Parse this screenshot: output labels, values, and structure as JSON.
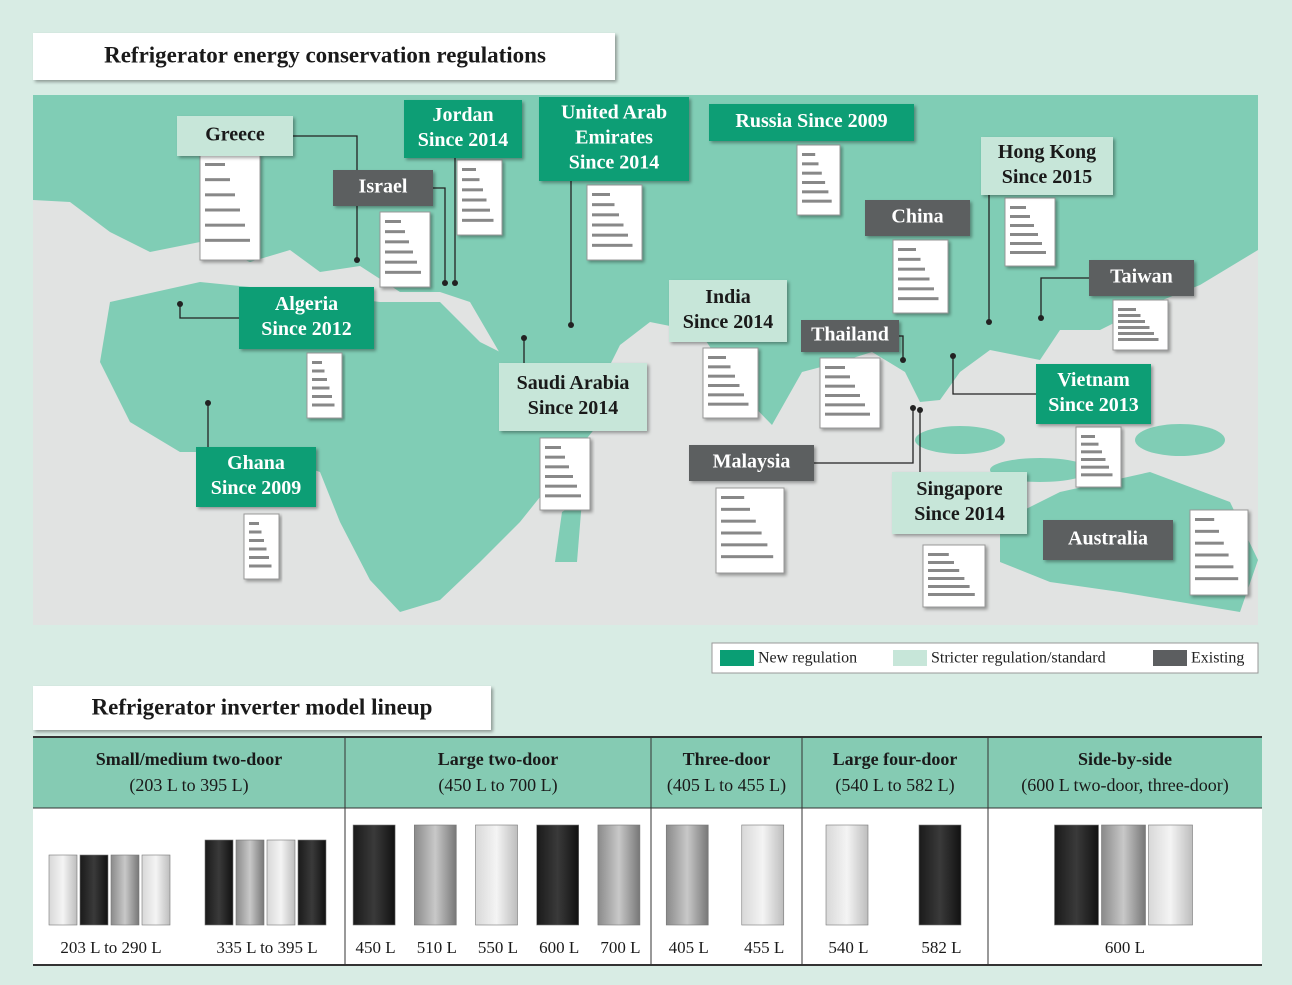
{
  "map": {
    "title": "Refrigerator energy conservation regulations",
    "regions": [
      {
        "lines": [
          "Greece"
        ],
        "color": "#c7e6d9"
      },
      {
        "lines": [
          "Jordan",
          "Since 2014"
        ],
        "color": "#0a9e74"
      },
      {
        "lines": [
          "United Arab",
          "Emirates",
          "Since 2014"
        ],
        "color": "#0a9e74"
      },
      {
        "lines": [
          "Russia  Since 2009"
        ],
        "color": "#0a9e74"
      },
      {
        "lines": [
          "Israel"
        ],
        "color": "#5c5e60"
      },
      {
        "lines": [
          "Hong Kong",
          "Since 2015"
        ],
        "color": "#c7e6d9"
      },
      {
        "lines": [
          "China"
        ],
        "color": "#5c5e60"
      },
      {
        "lines": [
          "Taiwan"
        ],
        "color": "#5c5e60"
      },
      {
        "lines": [
          "Algeria",
          "Since 2012"
        ],
        "color": "#0a9e74"
      },
      {
        "lines": [
          "India",
          "Since 2014"
        ],
        "color": "#c7e6d9"
      },
      {
        "lines": [
          "Thailand"
        ],
        "color": "#5c5e60"
      },
      {
        "lines": [
          "Saudi Arabia",
          "Since 2014"
        ],
        "color": "#c7e6d9"
      },
      {
        "lines": [
          "Vietnam",
          "Since 2013"
        ],
        "color": "#0a9e74"
      },
      {
        "lines": [
          "Malaysia"
        ],
        "color": "#5c5e60"
      },
      {
        "lines": [
          "Ghana",
          "Since 2009"
        ],
        "color": "#0a9e74"
      },
      {
        "lines": [
          "Singapore",
          "Since 2014"
        ],
        "color": "#c7e6d9"
      },
      {
        "lines": [
          "Australia"
        ],
        "color": "#5c5e60"
      }
    ],
    "legend": [
      {
        "name": "New regulation",
        "color": "#0a9e74"
      },
      {
        "name": "Stricter regulation/standard",
        "color": "#c7e6d9"
      },
      {
        "name": "Existing",
        "color": "#5c5e60"
      }
    ]
  },
  "lineup": {
    "title": "Refrigerator inverter model lineup",
    "columns": [
      {
        "name": "Small/medium two-door",
        "range": "(203 L to 395 L)",
        "captions": [
          "203 L to 290 L",
          "335 L to 395 L"
        ]
      },
      {
        "name": "Large two-door",
        "range": "(450 L to 700 L)",
        "captions": [
          "450 L",
          "510 L",
          "550 L",
          "600 L",
          "700 L"
        ]
      },
      {
        "name": "Three-door",
        "range": "(405 L to 455 L)",
        "captions": [
          "405 L",
          "455 L"
        ]
      },
      {
        "name": "Large four-door",
        "range": "(540 L to 582 L)",
        "captions": [
          "540 L",
          "582 L"
        ]
      },
      {
        "name": "Side-by-side",
        "range": "(600 L two-door, three-door)",
        "captions": [
          "600 L"
        ]
      }
    ]
  }
}
